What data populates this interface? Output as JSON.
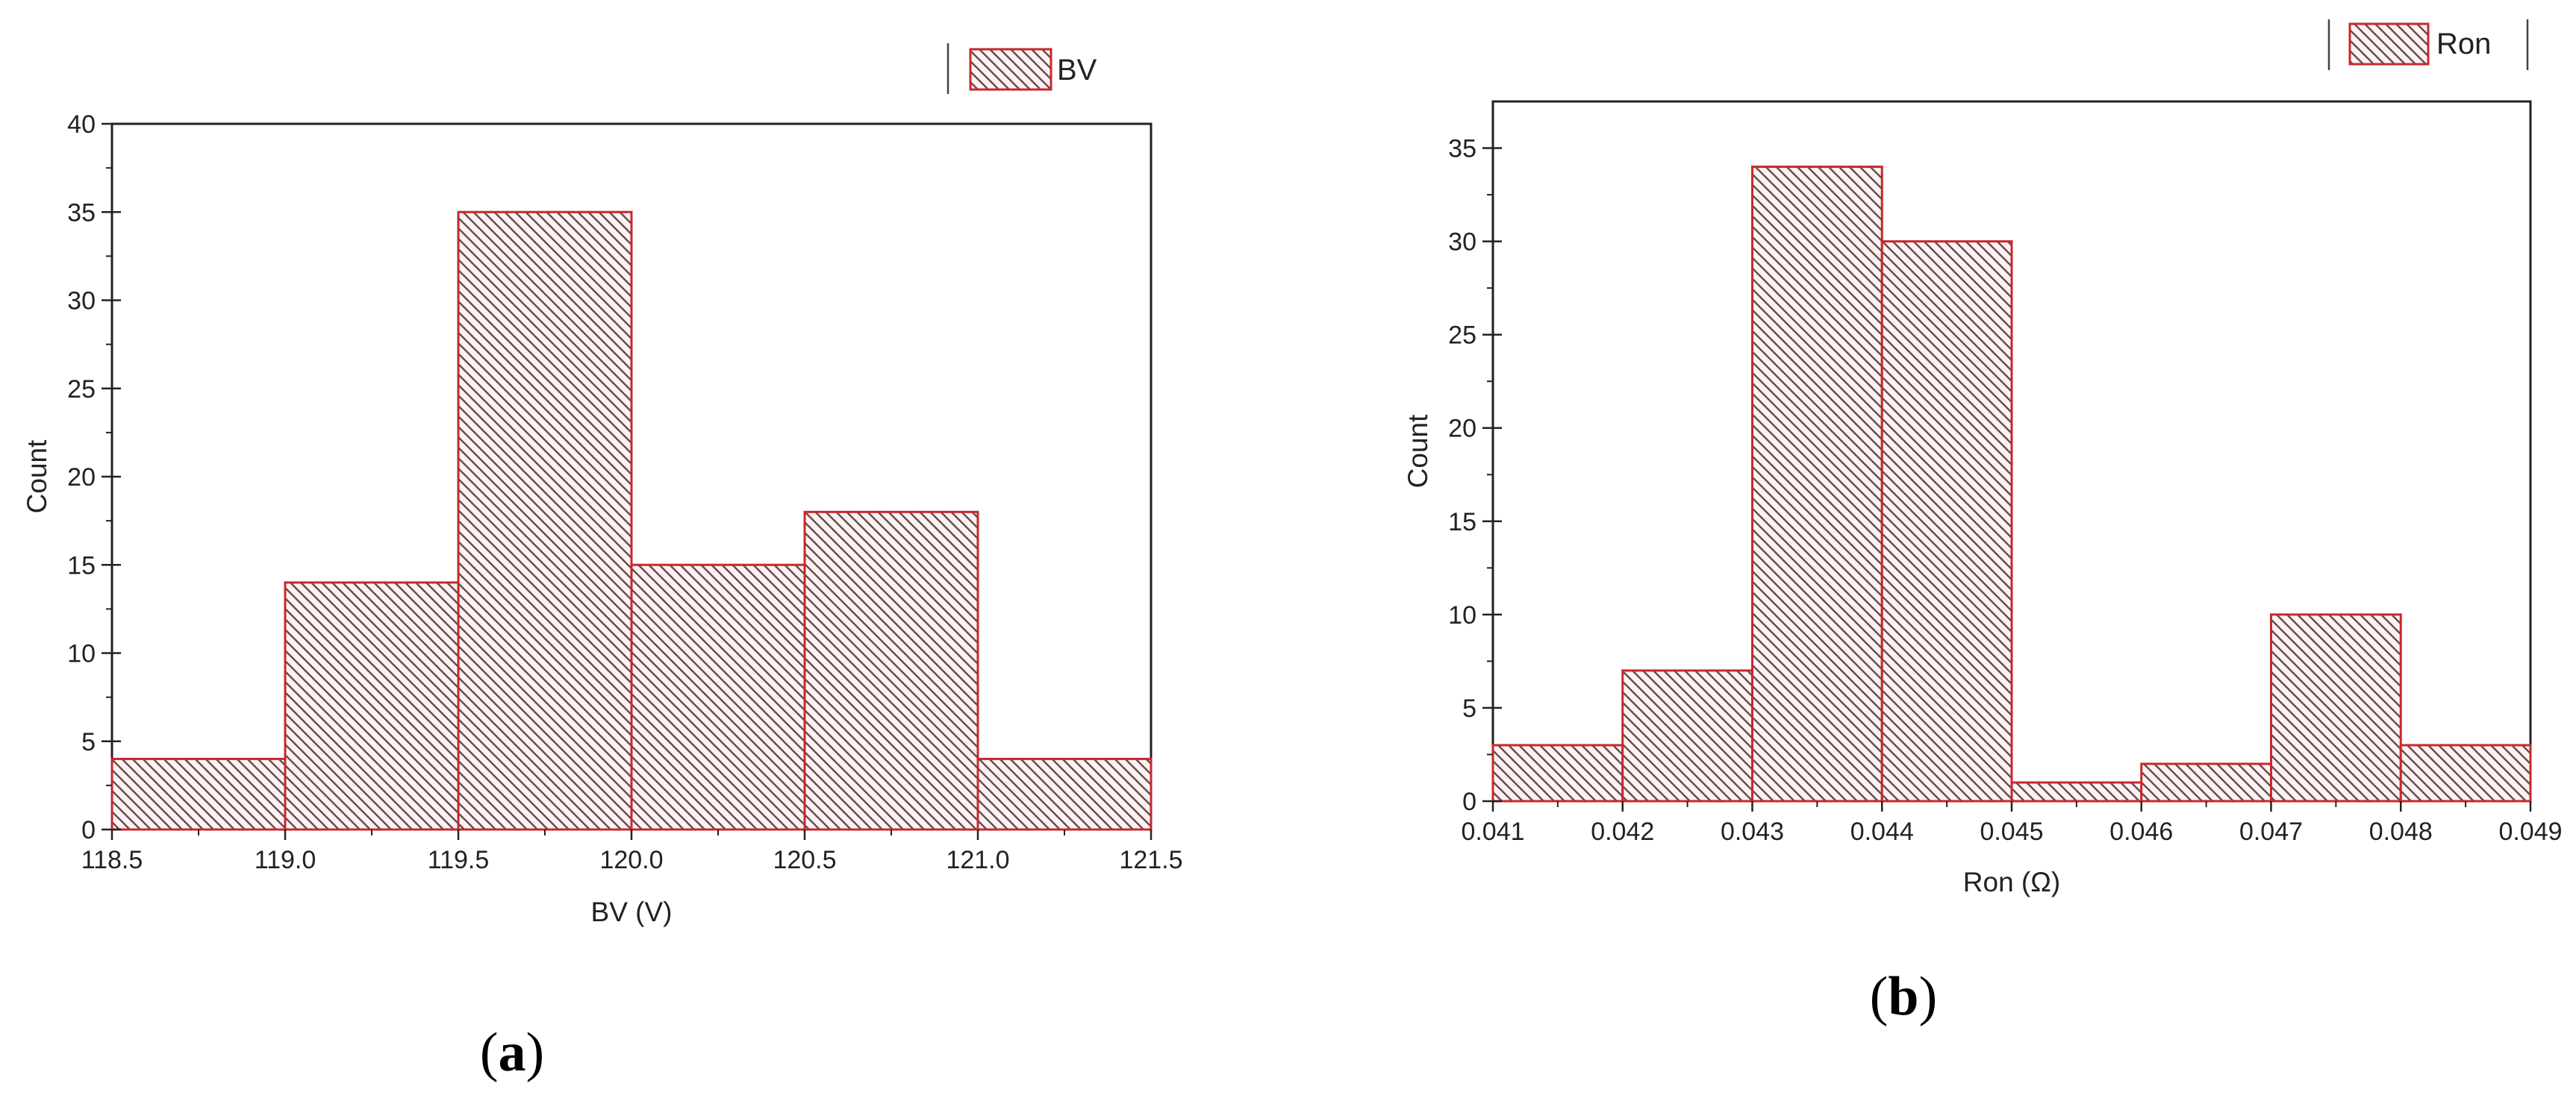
{
  "chart_data": [
    {
      "type": "bar",
      "panel": "(a)",
      "panel_letter": "a",
      "bins": [
        [
          118.5,
          119.0
        ],
        [
          119.0,
          119.5
        ],
        [
          119.5,
          120.0
        ],
        [
          120.0,
          120.5
        ],
        [
          120.5,
          121.0
        ],
        [
          121.0,
          121.5
        ]
      ],
      "values": [
        4,
        14,
        35,
        15,
        18,
        4
      ],
      "xlabel": "BV (V)",
      "ylabel": "Count",
      "xlim": [
        118.5,
        121.5
      ],
      "ylim": [
        0,
        40
      ],
      "xticks": [
        "118.5",
        "119.0",
        "119.5",
        "120.0",
        "120.5",
        "121.0",
        "121.5"
      ],
      "yticks": [
        "0",
        "5",
        "10",
        "15",
        "20",
        "25",
        "30",
        "35",
        "40"
      ],
      "legend": "BV",
      "legend_position": "top-right",
      "bar_color": "#c8282c",
      "fill": "diagonal-hatch",
      "grid": false
    },
    {
      "type": "bar",
      "panel": "(b)",
      "panel_letter": "b",
      "bins": [
        [
          0.041,
          0.042
        ],
        [
          0.042,
          0.043
        ],
        [
          0.043,
          0.044
        ],
        [
          0.044,
          0.045
        ],
        [
          0.045,
          0.046
        ],
        [
          0.046,
          0.047
        ],
        [
          0.047,
          0.048
        ],
        [
          0.048,
          0.049
        ]
      ],
      "values": [
        3,
        7,
        34,
        30,
        1,
        2,
        10,
        3
      ],
      "xlabel": "Ron (Ω)",
      "ylabel": "Count",
      "xlim": [
        0.041,
        0.049
      ],
      "ylim": [
        0,
        37.5
      ],
      "xticks": [
        "0.041",
        "0.042",
        "0.043",
        "0.044",
        "0.045",
        "0.046",
        "0.047",
        "0.048",
        "0.049"
      ],
      "yticks": [
        "0",
        "5",
        "10",
        "15",
        "20",
        "25",
        "30",
        "35"
      ],
      "legend": "Ron",
      "legend_position": "top-right",
      "bar_color": "#c8282c",
      "fill": "diagonal-hatch",
      "grid": false
    }
  ]
}
